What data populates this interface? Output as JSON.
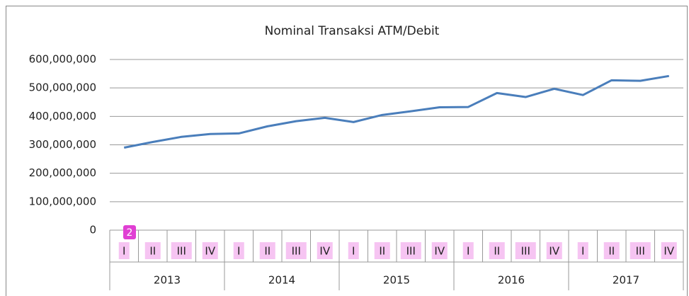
{
  "chart_data": {
    "type": "line",
    "title": "Nominal Transaksi ATM/Debit",
    "categories": [
      "I",
      "II",
      "III",
      "IV",
      "I",
      "II",
      "III",
      "IV",
      "I",
      "II",
      "III",
      "IV",
      "I",
      "II",
      "III",
      "IV",
      "I",
      "II",
      "III",
      "IV"
    ],
    "category_groups": [
      "2013",
      "2014",
      "2015",
      "2016",
      "2017"
    ],
    "series": [
      {
        "name": "Nominal Transaksi ATM/Debit",
        "color": "#4a7ebb",
        "values": [
          290000000,
          310000000,
          328000000,
          338000000,
          340000000,
          365000000,
          383000000,
          395000000,
          380000000,
          405000000,
          418000000,
          432000000,
          433000000,
          482000000,
          468000000,
          497000000,
          475000000,
          527000000,
          525000000,
          542000000
        ]
      }
    ],
    "ylim": [
      0,
      600000000
    ],
    "yticks": [
      0,
      {
        "value": 100000000,
        "label": "100,000,000"
      },
      {
        "value": 200000000,
        "label": "200,000,000"
      },
      {
        "value": 300000000,
        "label": "300,000,000"
      },
      {
        "value": 400000000,
        "label": "400,000,000"
      },
      {
        "value": 500000000,
        "label": "500,000,000"
      },
      {
        "value": 600000000,
        "label": "600,000,000"
      }
    ],
    "grid": true,
    "annotations": [
      "2"
    ]
  }
}
